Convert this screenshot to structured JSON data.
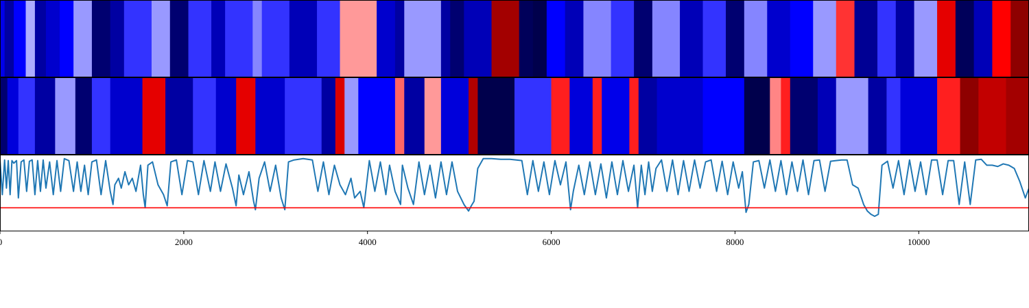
{
  "chart_data": [
    {
      "type": "heatmap",
      "panel": "top",
      "xlim": [
        0,
        11200
      ],
      "colormap": "seismic",
      "segments": [
        [
          0,
          50,
          0.22
        ],
        [
          50,
          150,
          0.12
        ],
        [
          150,
          280,
          0.25
        ],
        [
          280,
          380,
          0.42
        ],
        [
          380,
          500,
          0.12
        ],
        [
          500,
          650,
          0.18
        ],
        [
          650,
          800,
          0.25
        ],
        [
          800,
          1000,
          0.4
        ],
        [
          1000,
          1200,
          0.05
        ],
        [
          1200,
          1350,
          0.12
        ],
        [
          1350,
          1650,
          0.3
        ],
        [
          1650,
          1850,
          0.4
        ],
        [
          1850,
          2050,
          0.05
        ],
        [
          2050,
          2300,
          0.3
        ],
        [
          2300,
          2450,
          0.15
        ],
        [
          2450,
          2750,
          0.3
        ],
        [
          2750,
          2850,
          0.38
        ],
        [
          2850,
          3150,
          0.3
        ],
        [
          3150,
          3450,
          0.15
        ],
        [
          3450,
          3700,
          0.3
        ],
        [
          3700,
          4100,
          0.6
        ],
        [
          4100,
          4300,
          0.18
        ],
        [
          4300,
          4400,
          0.12
        ],
        [
          4400,
          4800,
          0.4
        ],
        [
          4800,
          4900,
          0.12
        ],
        [
          4900,
          5050,
          0.05
        ],
        [
          5050,
          5350,
          0.15
        ],
        [
          5350,
          5650,
          0.93
        ],
        [
          5650,
          5800,
          0.02
        ],
        [
          5800,
          5950,
          0.0
        ],
        [
          5950,
          6150,
          0.25
        ],
        [
          6150,
          6350,
          0.15
        ],
        [
          6350,
          6650,
          0.38
        ],
        [
          6650,
          6900,
          0.3
        ],
        [
          6900,
          7100,
          0.05
        ],
        [
          7100,
          7400,
          0.38
        ],
        [
          7400,
          7650,
          0.15
        ],
        [
          7650,
          7900,
          0.3
        ],
        [
          7900,
          8100,
          0.05
        ],
        [
          8100,
          8350,
          0.38
        ],
        [
          8350,
          8600,
          0.18
        ],
        [
          8600,
          8850,
          0.25
        ],
        [
          8850,
          9100,
          0.4
        ],
        [
          9100,
          9300,
          0.7
        ],
        [
          9300,
          9550,
          0.1
        ],
        [
          9550,
          9750,
          0.3
        ],
        [
          9750,
          9950,
          0.12
        ],
        [
          9950,
          10200,
          0.4
        ],
        [
          10200,
          10400,
          0.8
        ],
        [
          10400,
          10600,
          0.02
        ],
        [
          10600,
          10800,
          0.15
        ],
        [
          10800,
          11000,
          0.75
        ],
        [
          11000,
          11200,
          0.97
        ]
      ]
    },
    {
      "type": "heatmap",
      "panel": "middle",
      "xlim": [
        0,
        11200
      ],
      "colormap": "seismic",
      "segments": [
        [
          0,
          80,
          0.05
        ],
        [
          80,
          200,
          0.2
        ],
        [
          200,
          380,
          0.3
        ],
        [
          380,
          600,
          0.12
        ],
        [
          600,
          820,
          0.4
        ],
        [
          820,
          1000,
          0.05
        ],
        [
          1000,
          1200,
          0.3
        ],
        [
          1200,
          1550,
          0.18
        ],
        [
          1550,
          1800,
          0.8
        ],
        [
          1800,
          2100,
          0.12
        ],
        [
          2100,
          2350,
          0.3
        ],
        [
          2350,
          2570,
          0.18
        ],
        [
          2570,
          2780,
          0.8
        ],
        [
          2780,
          3100,
          0.18
        ],
        [
          3100,
          3500,
          0.3
        ],
        [
          3500,
          3650,
          0.12
        ],
        [
          3650,
          3750,
          0.82
        ],
        [
          3750,
          3900,
          0.4
        ],
        [
          3900,
          4300,
          0.25
        ],
        [
          4300,
          4400,
          0.65
        ],
        [
          4400,
          4620,
          0.12
        ],
        [
          4620,
          4800,
          0.6
        ],
        [
          4800,
          5100,
          0.2
        ],
        [
          5100,
          5200,
          0.9
        ],
        [
          5200,
          5600,
          0.0
        ],
        [
          5600,
          6000,
          0.3
        ],
        [
          6000,
          6200,
          0.72
        ],
        [
          6200,
          6450,
          0.2
        ],
        [
          6450,
          6550,
          0.72
        ],
        [
          6550,
          6850,
          0.22
        ],
        [
          6850,
          6950,
          0.72
        ],
        [
          6950,
          7150,
          0.12
        ],
        [
          7150,
          7650,
          0.18
        ],
        [
          7650,
          8100,
          0.25
        ],
        [
          8100,
          8380,
          0.0
        ],
        [
          8380,
          8500,
          0.62
        ],
        [
          8500,
          8600,
          0.72
        ],
        [
          8600,
          8900,
          0.05
        ],
        [
          8900,
          9100,
          0.15
        ],
        [
          9100,
          9450,
          0.4
        ],
        [
          9450,
          9650,
          0.12
        ],
        [
          9650,
          9800,
          0.3
        ],
        [
          9800,
          10200,
          0.2
        ],
        [
          10200,
          10450,
          0.72
        ],
        [
          10450,
          10650,
          0.97
        ],
        [
          10650,
          10950,
          0.87
        ],
        [
          10950,
          11200,
          0.93
        ]
      ]
    },
    {
      "type": "line",
      "panel": "bottom",
      "xlim": [
        0,
        11200
      ],
      "ylim": [
        -0.1,
        1.05
      ],
      "xticks": [
        0,
        2000,
        4000,
        6000,
        8000,
        10000
      ],
      "grid": false,
      "series_color": "#1f77b4",
      "threshold": {
        "value": 0.25,
        "color": "#ff0000"
      },
      "series": {
        "x": [
          0,
          25,
          50,
          70,
          90,
          110,
          130,
          150,
          180,
          200,
          230,
          260,
          290,
          320,
          350,
          380,
          410,
          440,
          470,
          500,
          540,
          580,
          620,
          660,
          700,
          750,
          800,
          840,
          880,
          920,
          960,
          1000,
          1050,
          1100,
          1150,
          1200,
          1230,
          1250,
          1290,
          1320,
          1360,
          1400,
          1440,
          1480,
          1530,
          1560,
          1580,
          1610,
          1660,
          1720,
          1780,
          1820,
          1860,
          1920,
          1980,
          2040,
          2100,
          2160,
          2220,
          2290,
          2340,
          2400,
          2460,
          2530,
          2570,
          2600,
          2650,
          2710,
          2760,
          2780,
          2820,
          2880,
          2940,
          3000,
          3060,
          3100,
          3140,
          3200,
          3300,
          3400,
          3460,
          3520,
          3580,
          3640,
          3700,
          3760,
          3820,
          3860,
          3920,
          3960,
          4020,
          4080,
          4140,
          4200,
          4240,
          4300,
          4360,
          4380,
          4440,
          4500,
          4560,
          4620,
          4680,
          4740,
          4800,
          4860,
          4920,
          4980,
          5050,
          5100,
          5130,
          5160,
          5200,
          5260,
          5350,
          5450,
          5550,
          5620,
          5680,
          5740,
          5800,
          5860,
          5920,
          5980,
          6040,
          6100,
          6160,
          6210,
          6240,
          6300,
          6360,
          6420,
          6480,
          6540,
          6600,
          6660,
          6720,
          6780,
          6840,
          6900,
          6940,
          6980,
          7020,
          7060,
          7100,
          7140,
          7200,
          7260,
          7320,
          7380,
          7440,
          7500,
          7560,
          7620,
          7680,
          7740,
          7800,
          7860,
          7920,
          7980,
          8040,
          8080,
          8120,
          8150,
          8200,
          8260,
          8320,
          8380,
          8440,
          8500,
          8560,
          8620,
          8680,
          8740,
          8800,
          8860,
          8920,
          8980,
          9040,
          9100,
          9160,
          9220,
          9280,
          9340,
          9400,
          9440,
          9480,
          9520,
          9560,
          9600,
          9660,
          9720,
          9780,
          9840,
          9900,
          9960,
          10020,
          10080,
          10140,
          10200,
          10260,
          10320,
          10380,
          10440,
          10500,
          10560,
          10620,
          10680,
          10740,
          10800,
          10860,
          10920,
          10980,
          11040,
          11100,
          11160,
          11200
        ],
        "y": [
          0.98,
          0.45,
          0.98,
          0.55,
          0.97,
          0.45,
          0.97,
          0.93,
          0.97,
          0.4,
          0.95,
          0.98,
          0.5,
          0.96,
          0.98,
          0.45,
          0.97,
          0.5,
          0.98,
          0.55,
          0.95,
          0.45,
          0.97,
          0.5,
          1.0,
          0.97,
          0.5,
          0.95,
          0.5,
          0.9,
          0.45,
          0.95,
          0.98,
          0.45,
          0.97,
          0.5,
          0.3,
          0.6,
          0.7,
          0.55,
          0.8,
          0.6,
          0.7,
          0.5,
          0.9,
          0.45,
          0.25,
          0.9,
          0.95,
          0.6,
          0.45,
          0.28,
          0.95,
          0.98,
          0.45,
          0.97,
          0.95,
          0.45,
          0.97,
          0.5,
          0.95,
          0.5,
          0.92,
          0.55,
          0.28,
          0.75,
          0.45,
          0.8,
          0.35,
          0.22,
          0.7,
          0.95,
          0.5,
          0.9,
          0.4,
          0.22,
          0.95,
          0.98,
          1.0,
          0.98,
          0.5,
          0.95,
          0.45,
          0.9,
          0.6,
          0.45,
          0.7,
          0.4,
          0.5,
          0.25,
          0.97,
          0.5,
          0.95,
          0.45,
          0.9,
          0.5,
          0.3,
          0.9,
          0.55,
          0.3,
          0.95,
          0.45,
          0.9,
          0.4,
          0.95,
          0.45,
          0.95,
          0.5,
          0.3,
          0.2,
          0.28,
          0.35,
          0.85,
          1.0,
          1.0,
          0.99,
          0.99,
          0.98,
          0.97,
          0.45,
          0.97,
          0.5,
          0.95,
          0.45,
          0.97,
          0.6,
          0.95,
          0.22,
          0.5,
          0.9,
          0.45,
          0.95,
          0.45,
          0.92,
          0.4,
          0.95,
          0.45,
          0.97,
          0.5,
          0.9,
          0.25,
          0.9,
          0.45,
          0.95,
          0.5,
          0.85,
          0.98,
          0.5,
          0.98,
          0.45,
          0.97,
          0.5,
          0.98,
          0.55,
          0.95,
          0.98,
          0.5,
          0.96,
          0.45,
          0.95,
          0.55,
          0.8,
          0.18,
          0.3,
          0.95,
          0.97,
          0.55,
          0.98,
          0.5,
          0.97,
          0.45,
          0.95,
          0.5,
          0.98,
          0.45,
          0.97,
          0.98,
          0.5,
          0.96,
          0.97,
          0.98,
          0.98,
          0.6,
          0.55,
          0.3,
          0.2,
          0.15,
          0.12,
          0.15,
          0.9,
          0.96,
          0.55,
          0.97,
          0.45,
          0.98,
          0.5,
          0.95,
          0.45,
          0.98,
          0.98,
          0.45,
          0.97,
          0.97,
          0.3,
          0.95,
          0.3,
          0.98,
          0.99,
          0.9,
          0.9,
          0.88,
          0.92,
          0.9,
          0.85,
          0.65,
          0.4,
          0.55
        ]
      }
    }
  ]
}
